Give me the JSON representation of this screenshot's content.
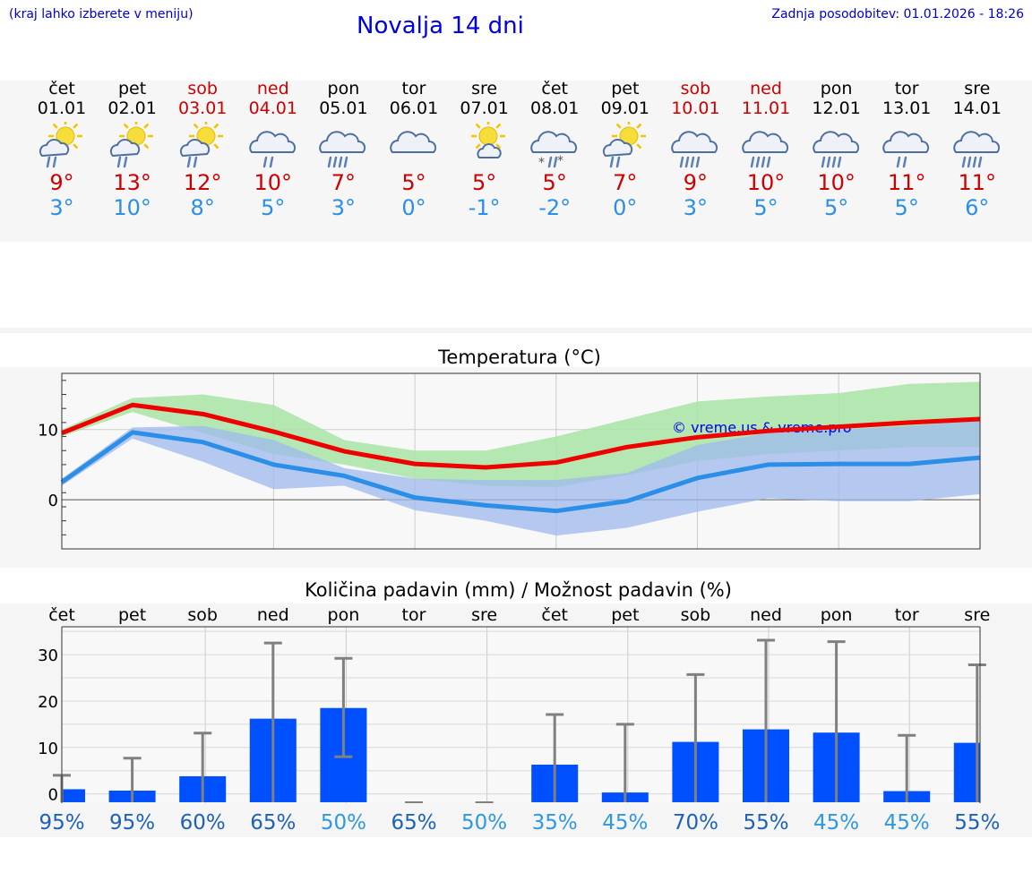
{
  "header": {
    "hint": "(kraj lahko izberete v meniju)",
    "title": "Novalja 14 dni",
    "updated": "Zadnja posodobitev: 01.01.2026 - 18:26"
  },
  "days": [
    {
      "name": "čet",
      "date": "01.01",
      "weekend": false,
      "icon": "sun-cloud-rain-icon",
      "max": "9°",
      "min": "3°"
    },
    {
      "name": "pet",
      "date": "02.01",
      "weekend": false,
      "icon": "sun-cloud-rain-icon",
      "max": "13°",
      "min": "10°"
    },
    {
      "name": "sob",
      "date": "03.01",
      "weekend": true,
      "icon": "sun-cloud-rain-icon",
      "max": "12°",
      "min": "8°"
    },
    {
      "name": "ned",
      "date": "04.01",
      "weekend": true,
      "icon": "cloud-rain-icon",
      "max": "10°",
      "min": "5°"
    },
    {
      "name": "pon",
      "date": "05.01",
      "weekend": false,
      "icon": "cloud-heavy-rain-icon",
      "max": "7°",
      "min": "3°"
    },
    {
      "name": "tor",
      "date": "06.01",
      "weekend": false,
      "icon": "cloud-icon",
      "max": "5°",
      "min": "0°"
    },
    {
      "name": "sre",
      "date": "07.01",
      "weekend": false,
      "icon": "sun-cloud-icon",
      "max": "5°",
      "min": "-1°"
    },
    {
      "name": "čet",
      "date": "08.01",
      "weekend": false,
      "icon": "cloud-snow-rain-icon",
      "max": "5°",
      "min": "-2°"
    },
    {
      "name": "pet",
      "date": "09.01",
      "weekend": false,
      "icon": "sun-cloud-rain-icon",
      "max": "7°",
      "min": "0°"
    },
    {
      "name": "sob",
      "date": "10.01",
      "weekend": true,
      "icon": "cloud-heavy-rain-icon",
      "max": "9°",
      "min": "3°"
    },
    {
      "name": "ned",
      "date": "11.01",
      "weekend": true,
      "icon": "cloud-heavy-rain-icon",
      "max": "10°",
      "min": "5°"
    },
    {
      "name": "pon",
      "date": "12.01",
      "weekend": false,
      "icon": "cloud-heavy-rain-icon",
      "max": "10°",
      "min": "5°"
    },
    {
      "name": "tor",
      "date": "13.01",
      "weekend": false,
      "icon": "cloud-rain-icon",
      "max": "11°",
      "min": "5°"
    },
    {
      "name": "sre",
      "date": "14.01",
      "weekend": false,
      "icon": "cloud-heavy-rain-icon",
      "max": "11°",
      "min": "6°"
    }
  ],
  "chart_data": [
    {
      "type": "line",
      "title": "Temperatura (°C)",
      "watermark": "© vreme.us & vreme.pro",
      "x": [
        "01.01",
        "02.01",
        "03.01",
        "04.01",
        "05.01",
        "06.01",
        "07.01",
        "08.01",
        "09.01",
        "10.01",
        "11.01",
        "12.01",
        "13.01",
        "14.01"
      ],
      "ylim": [
        -7,
        18
      ],
      "yticks": [
        0,
        10
      ],
      "series": [
        {
          "name": "max",
          "color": "#ee0000",
          "values": [
            9.5,
            13.5,
            12.2,
            9.7,
            6.9,
            5.1,
            4.6,
            5.3,
            7.5,
            8.9,
            9.8,
            10.4,
            11.0,
            11.5
          ]
        },
        {
          "name": "min",
          "color": "#2b8fe8",
          "values": [
            2.5,
            9.6,
            8.2,
            5.0,
            3.4,
            0.3,
            -0.8,
            -1.6,
            -0.2,
            3.1,
            5.0,
            5.1,
            5.1,
            6.0
          ]
        },
        {
          "name": "max-range",
          "color": "#a8e4a6",
          "lower": [
            9.0,
            12.5,
            9.5,
            6.5,
            5.0,
            3.0,
            2.0,
            1.8,
            3.5,
            5.5,
            6.5,
            7.0,
            7.5,
            7.5
          ],
          "upper": [
            10.0,
            14.5,
            15.0,
            13.5,
            8.5,
            7.0,
            7.0,
            9.0,
            11.5,
            14.0,
            14.7,
            15.2,
            16.5,
            16.8
          ]
        },
        {
          "name": "min-range",
          "color": "#9fb9ee",
          "lower": [
            2.0,
            8.7,
            5.4,
            1.5,
            2.0,
            -1.5,
            -3.0,
            -5.1,
            -4.0,
            -1.7,
            0.2,
            -0.2,
            -0.2,
            0.8
          ],
          "upper": [
            3.0,
            10.3,
            10.5,
            8.5,
            4.5,
            3.0,
            2.8,
            2.8,
            3.8,
            7.8,
            9.5,
            10.0,
            10.5,
            11.3
          ]
        }
      ]
    },
    {
      "type": "bar",
      "title": "Količina padavin (mm) / Možnost padavin (%)",
      "categories": [
        "čet",
        "pet",
        "sob",
        "ned",
        "pon",
        "tor",
        "sre",
        "čet",
        "pet",
        "sob",
        "ned",
        "pon",
        "tor",
        "sre"
      ],
      "ylim": [
        -2,
        36
      ],
      "yticks": [
        0,
        10,
        20,
        30
      ],
      "bar_color": "#0050ff",
      "values": [
        1.0,
        0.7,
        3.8,
        16.2,
        18.5,
        0.0,
        0.0,
        6.3,
        0.3,
        11.2,
        13.9,
        13.2,
        0.6,
        11.0
      ],
      "error_low": [
        0,
        0,
        0,
        0,
        8.0,
        0,
        0,
        0,
        0,
        0,
        0,
        0,
        0,
        0
      ],
      "error_high": [
        4.0,
        7.7,
        13.1,
        32.5,
        29.2,
        0,
        0,
        17.1,
        15.0,
        25.7,
        33.1,
        32.8,
        12.6,
        27.8
      ],
      "probability": [
        "95%",
        "95%",
        "60%",
        "65%",
        "50%",
        "65%",
        "50%",
        "35%",
        "45%",
        "70%",
        "55%",
        "45%",
        "45%",
        "55%"
      ],
      "probability_colors": [
        "#1c62b8",
        "#1c62b8",
        "#1c62b8",
        "#1c62b8",
        "#2e98e0",
        "#1c62b8",
        "#2e98e0",
        "#2e98e0",
        "#2e98e0",
        "#1c62b8",
        "#1c62b8",
        "#2e98e0",
        "#2e98e0",
        "#1c62b8"
      ]
    }
  ]
}
